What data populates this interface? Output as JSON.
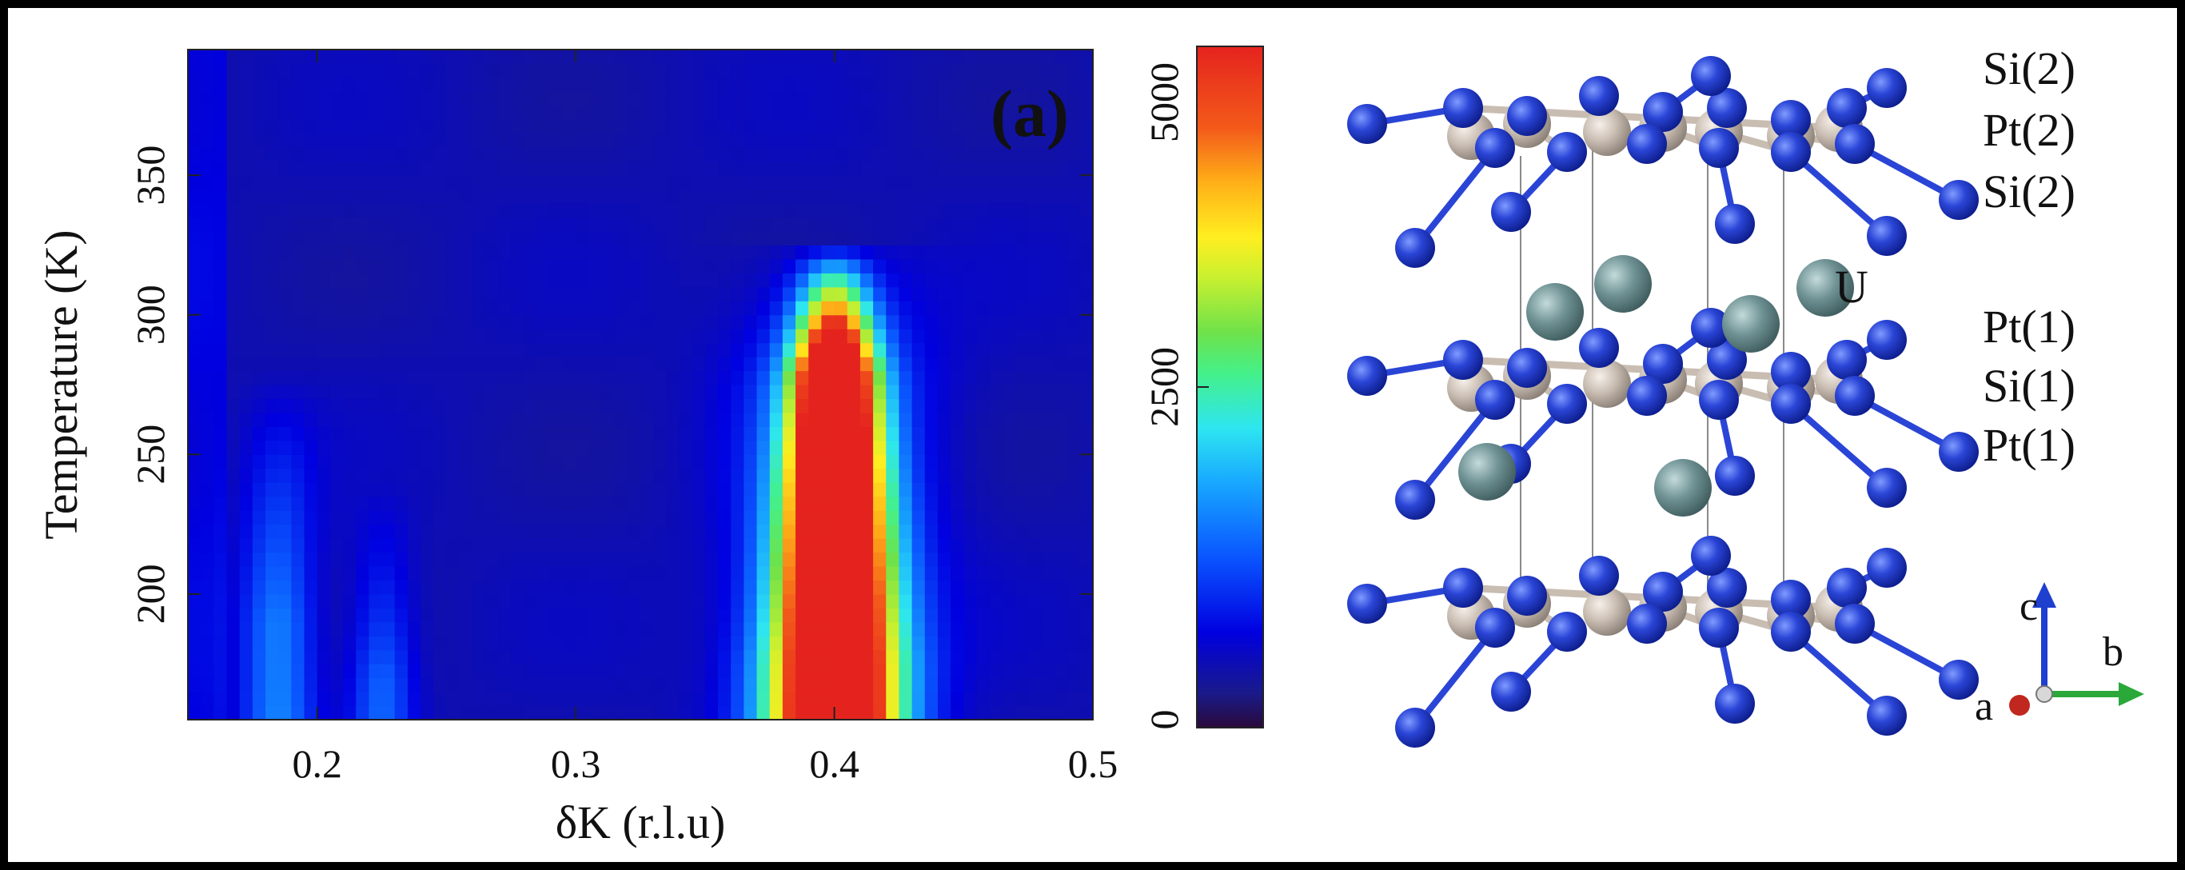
{
  "chart_data": {
    "type": "heatmap",
    "panel_label": "(a)",
    "xlabel": "δK (r.l.u)",
    "ylabel": "Temperature (K)",
    "xlim": [
      0.15,
      0.5
    ],
    "ylim": [
      155,
      395
    ],
    "x_ticks": [
      0.2,
      0.3,
      0.4,
      0.5
    ],
    "x_tick_labels": [
      "0.2",
      "0.3",
      "0.4",
      "0.5"
    ],
    "y_ticks": [
      200,
      250,
      300,
      350
    ],
    "y_tick_labels": [
      "200",
      "250",
      "300",
      "350"
    ],
    "colorbar": {
      "range": [
        0,
        5000
      ],
      "ticks": [
        0,
        2500,
        5000
      ],
      "tick_labels": [
        "0",
        "2500",
        "5000"
      ],
      "colormap": "jet"
    },
    "features": [
      {
        "name": "superlattice-peak",
        "center_x": 0.4,
        "width_x": 0.012,
        "peak_intensity": 5000,
        "onset_temperature": 325,
        "t_min": 155
      },
      {
        "name": "diffuse-ridge-left",
        "center_x": 0.185,
        "peak_intensity": 1100,
        "t_max": 280
      },
      {
        "name": "diffuse-ridge-right",
        "center_x": 0.225,
        "peak_intensity": 900,
        "t_max": 240
      }
    ],
    "background_intensity": 450,
    "grid": false
  },
  "structure": {
    "atom_labels": [
      "Si(2)",
      "Pt(2)",
      "Si(2)",
      "U",
      "Pt(1)",
      "Si(1)",
      "Pt(1)"
    ],
    "axes_labels": {
      "c": "c",
      "b": "b",
      "a": "a"
    },
    "colors": {
      "si": "#1f3fcf",
      "pt": "#c8bdb3",
      "u": "#6f8f90",
      "axis_c": "#1f3fcf",
      "axis_b": "#2aa83a",
      "axis_a": "#c0281f"
    }
  }
}
